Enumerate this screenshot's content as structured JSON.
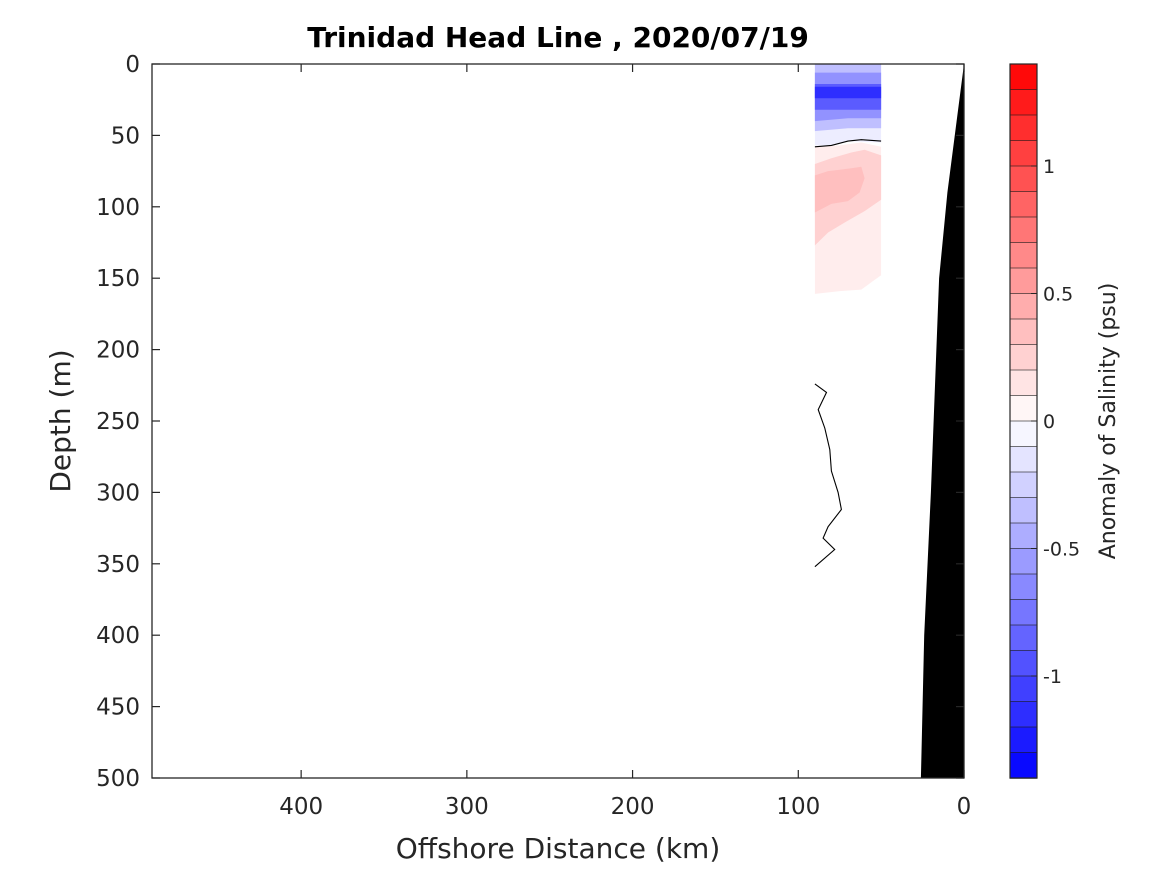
{
  "chart_data": {
    "type": "heatmap",
    "title": "Trinidad Head Line , 2020/07/19",
    "xlabel": "Offshore Distance (km)",
    "ylabel": "Depth (m)",
    "xlim": [
      490,
      0
    ],
    "ylim": [
      0,
      500
    ],
    "x_reversed": true,
    "y_reversed": true,
    "x_ticks": [
      400,
      300,
      200,
      100,
      0
    ],
    "y_ticks": [
      0,
      50,
      100,
      150,
      200,
      250,
      300,
      350,
      400,
      450,
      500
    ],
    "grid": false,
    "colorbar": {
      "label": "Anomaly of Salinity (psu)",
      "range": [
        -1.4,
        1.4
      ],
      "levels": 28,
      "ticks": [
        1,
        0.5,
        0,
        -0.5,
        -1
      ],
      "tick_labels": [
        "1",
        "0.5",
        "0",
        "-0.5",
        "-1"
      ],
      "colormap": "blue-white-red",
      "color_negative": "#0000ff",
      "color_zero": "#ffffff",
      "color_positive": "#ff0000"
    },
    "data_extent_x": [
      50,
      90
    ],
    "bathymetry": [
      {
        "x": 0,
        "depth": 0
      },
      {
        "x": 10,
        "depth": 90
      },
      {
        "x": 15,
        "depth": 150
      },
      {
        "x": 20,
        "depth": 300
      },
      {
        "x": 24,
        "depth": 400
      },
      {
        "x": 26,
        "depth": 500
      }
    ],
    "regions": [
      {
        "value": -0.1,
        "polygon": [
          [
            90,
            0
          ],
          [
            50,
            0
          ],
          [
            50,
            55
          ],
          [
            70,
            54
          ],
          [
            80,
            57
          ],
          [
            90,
            57
          ]
        ]
      },
      {
        "value": -0.35,
        "polygon": [
          [
            90,
            0
          ],
          [
            50,
            0
          ],
          [
            50,
            45
          ],
          [
            70,
            45
          ],
          [
            90,
            47
          ]
        ]
      },
      {
        "value": -0.6,
        "polygon": [
          [
            90,
            6
          ],
          [
            50,
            6
          ],
          [
            50,
            38
          ],
          [
            70,
            38
          ],
          [
            90,
            40
          ]
        ]
      },
      {
        "value": -0.9,
        "polygon": [
          [
            90,
            14
          ],
          [
            50,
            14
          ],
          [
            50,
            32
          ],
          [
            90,
            32
          ]
        ]
      },
      {
        "value": -1.15,
        "polygon": [
          [
            90,
            16
          ],
          [
            50,
            16
          ],
          [
            50,
            24
          ],
          [
            90,
            24
          ]
        ]
      },
      {
        "value": 0.1,
        "polygon": [
          [
            90,
            58
          ],
          [
            75,
            57
          ],
          [
            62,
            55
          ],
          [
            50,
            58
          ],
          [
            50,
            148
          ],
          [
            55,
            152
          ],
          [
            62,
            158
          ],
          [
            75,
            159
          ],
          [
            90,
            161
          ]
        ]
      },
      {
        "value": 0.25,
        "polygon": [
          [
            90,
            70
          ],
          [
            80,
            66
          ],
          [
            68,
            62
          ],
          [
            60,
            60
          ],
          [
            50,
            64
          ],
          [
            50,
            95
          ],
          [
            60,
            103
          ],
          [
            72,
            111
          ],
          [
            82,
            118
          ],
          [
            90,
            127
          ]
        ]
      },
      {
        "value": 0.35,
        "polygon": [
          [
            90,
            78
          ],
          [
            82,
            75
          ],
          [
            75,
            74
          ],
          [
            68,
            73
          ],
          [
            62,
            72
          ],
          [
            60,
            80
          ],
          [
            63,
            90
          ],
          [
            70,
            96
          ],
          [
            80,
            98
          ],
          [
            90,
            104
          ]
        ]
      }
    ],
    "contours": [
      {
        "value": 0,
        "points": [
          [
            90,
            58
          ],
          [
            80,
            57
          ],
          [
            70,
            54
          ],
          [
            62,
            53
          ],
          [
            50,
            54
          ]
        ]
      },
      {
        "value": 0,
        "points": [
          [
            90,
            224
          ],
          [
            83,
            230
          ],
          [
            88,
            242
          ],
          [
            84,
            255
          ],
          [
            81,
            270
          ],
          [
            80,
            285
          ],
          [
            76,
            300
          ],
          [
            74,
            312
          ],
          [
            82,
            324
          ],
          [
            85,
            332
          ],
          [
            78,
            340
          ],
          [
            90,
            352
          ]
        ]
      }
    ]
  }
}
